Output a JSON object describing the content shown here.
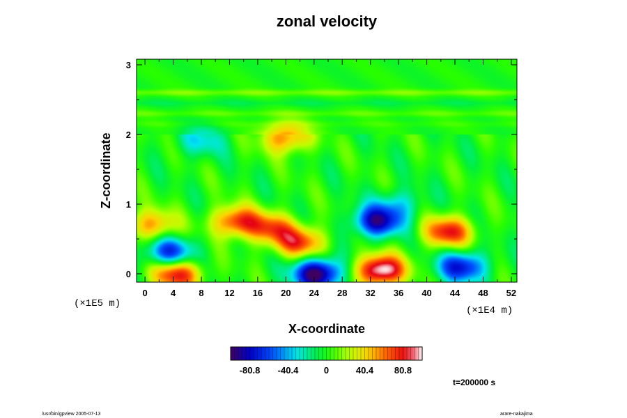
{
  "chart_data": {
    "type": "heatmap",
    "title": "zonal velocity",
    "xlabel": "X-coordinate",
    "ylabel": "Z-coordinate",
    "x_scale_note": "(×1E4 m)",
    "y_scale_note": "(×1E5 m)",
    "x_ticks": [
      "0",
      "4",
      "8",
      "12",
      "16",
      "20",
      "24",
      "28",
      "32",
      "36",
      "40",
      "44",
      "48",
      "52"
    ],
    "y_ticks": [
      "0",
      "1",
      "2",
      "3"
    ],
    "xlim": [
      -1.2,
      52.8
    ],
    "ylim": [
      -0.12,
      3.08
    ],
    "grid": false,
    "colormap": "rainbow",
    "colorbar": {
      "min": -101,
      "max": 101,
      "tick_labels": [
        "-80.8",
        "-40.4",
        "0",
        "40.4",
        "80.8"
      ],
      "tick_values": [
        -80.8,
        -40.4,
        0,
        40.4,
        80.8
      ]
    },
    "features": [
      {
        "x": 1,
        "z": 0.7,
        "value": 55
      },
      {
        "x": 4.5,
        "z": 0.0,
        "value": 85
      },
      {
        "x": 3.5,
        "z": 0.3,
        "value": -70
      },
      {
        "x": 13,
        "z": 0.75,
        "value": 75
      },
      {
        "x": 18,
        "z": 0.65,
        "value": 60
      },
      {
        "x": 22,
        "z": 0.45,
        "value": 70
      },
      {
        "x": 24.5,
        "z": 0.0,
        "value": -105
      },
      {
        "x": 33.5,
        "z": 0.05,
        "value": 110
      },
      {
        "x": 33,
        "z": 0.75,
        "value": -85
      },
      {
        "x": 43,
        "z": 0.6,
        "value": 80
      },
      {
        "x": 45,
        "z": 0.1,
        "value": -75
      },
      {
        "x": 36,
        "z": 1.0,
        "value": -30
      },
      {
        "x": 20,
        "z": 1.95,
        "value": 60
      },
      {
        "x": 8,
        "z": 1.9,
        "value": -30
      }
    ],
    "bands": [
      {
        "z": 2.6,
        "value": 15
      },
      {
        "z": 2.45,
        "value": -8
      },
      {
        "z": 2.3,
        "value": 10
      },
      {
        "z": 2.15,
        "value": 5
      }
    ]
  },
  "annotations": {
    "time": "t=200000 s",
    "footer_left": "/usr/bin/gpview 2005-07-13",
    "footer_right": "arare-nakajima"
  }
}
